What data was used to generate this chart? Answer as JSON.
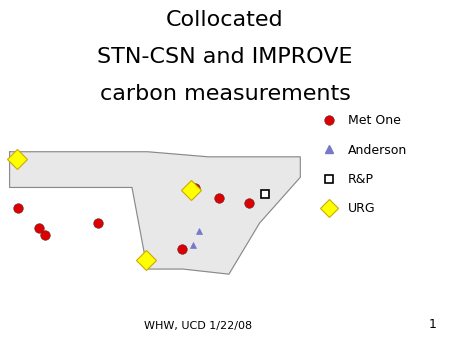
{
  "title_line1": "Collocated",
  "title_line2": "STN-CSN and IMPROVE",
  "title_line3": "carbon measurements",
  "title_fontsize": 16,
  "footer": "WHW, UCD 1/22/08",
  "slide_number": "1",
  "background_color": "#ffffff",
  "map_xlim": [
    -125,
    -65
  ],
  "map_ylim": [
    23,
    51
  ],
  "met_one_color": "#dd0000",
  "anderson_color": "#7777cc",
  "urg_color": "#ffff00",
  "urg_edge_color": "#ccaa00",
  "met_one_sites_lon": [
    -122.3,
    -118.2,
    -117.1,
    -106.6,
    -83.0,
    -77.0,
    -90.2,
    -87.7
  ],
  "met_one_sites_lat": [
    37.9,
    34.0,
    32.7,
    35.1,
    40.0,
    38.9,
    30.0,
    41.8
  ],
  "anderson_sites_lon": [
    -88.0,
    -86.8
  ],
  "anderson_sites_lat": [
    30.7,
    33.5
  ],
  "rp_sites_lon": [
    -74.0
  ],
  "rp_sites_lat": [
    40.7
  ],
  "urg_sites_lon": [
    -122.5,
    -88.5,
    -97.3
  ],
  "urg_sites_lat": [
    47.6,
    41.5,
    27.8
  ],
  "legend_fontsize": 9,
  "map_facecolor": "#e8e8e8",
  "state_edgecolor": "#aaaaaa",
  "coast_edgecolor": "#888888"
}
